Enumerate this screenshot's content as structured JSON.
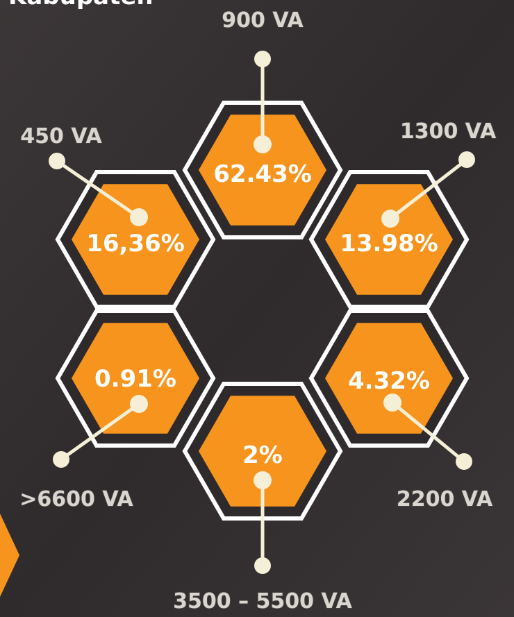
{
  "header": {
    "title": "Kabupaten"
  },
  "segments": [
    {
      "label": "900 VA",
      "value": "62.43%"
    },
    {
      "label": "1300 VA",
      "value": "13.98%"
    },
    {
      "label": "2200 VA",
      "value": "4.32%"
    },
    {
      "label": "3500 – 5500 VA",
      "value": "2%"
    },
    {
      "label": ">6600 VA",
      "value": "0.91%"
    },
    {
      "label": "450 VA",
      "value": "16,36%"
    }
  ]
}
